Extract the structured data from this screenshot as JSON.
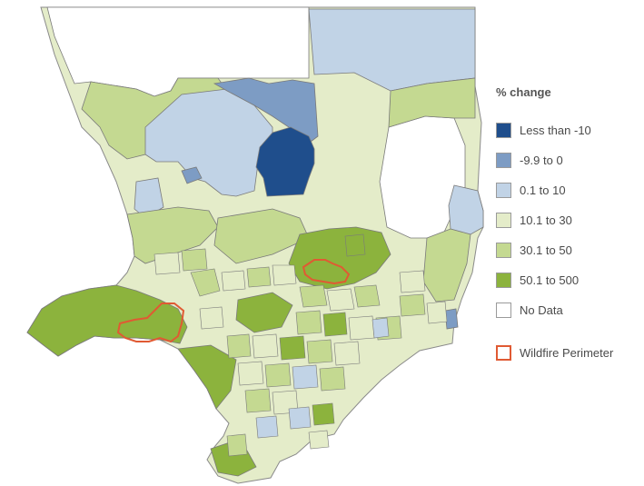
{
  "legend": {
    "title": "% change",
    "items": [
      {
        "label": "Less than -10",
        "color": "#1f4e8c"
      },
      {
        "label": "-9.9 to 0",
        "color": "#7d9cc4"
      },
      {
        "label": "0.1 to 10",
        "color": "#c1d3e6"
      },
      {
        "label": "10.1 to 30",
        "color": "#e4ecc9"
      },
      {
        "label": "30.1 to 50",
        "color": "#c4d991"
      },
      {
        "label": "50.1 to 500",
        "color": "#8cb33d"
      },
      {
        "label": "No Data",
        "color": "#ffffff"
      }
    ],
    "wildfire": {
      "label": "Wildfire Perimeter",
      "color": "#e05a33"
    }
  },
  "map": {
    "county_outline_color": "#8a8a8a",
    "tract_border_color": "#7a7a7a"
  }
}
